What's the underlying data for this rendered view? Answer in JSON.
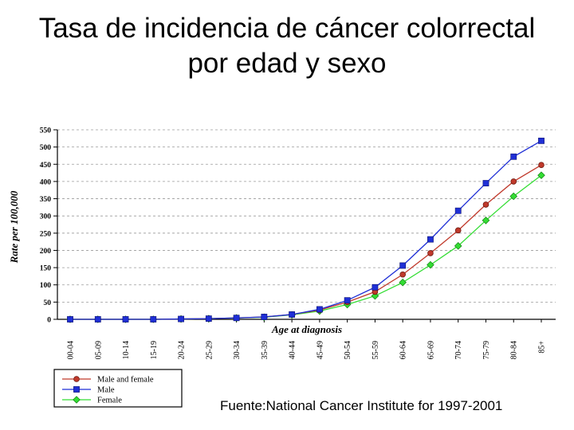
{
  "slide": {
    "title_line1": "Tasa de incidencia de cáncer colorrectal",
    "title_line2": "por edad y sexo",
    "source": "Fuente:National Cancer Institute for 1997-2001"
  },
  "chart_data": {
    "type": "line",
    "title": "",
    "xlabel": "Age at diagnosis",
    "ylabel": "Rate per 100,000",
    "ylim": [
      0,
      550
    ],
    "yticks": [
      0,
      50,
      100,
      150,
      200,
      250,
      300,
      350,
      400,
      450,
      500,
      550
    ],
    "grid": "horizontal dashed",
    "legend_position": "bottom-left",
    "categories": [
      "00-04",
      "05-09",
      "10-14",
      "15-19",
      "20-24",
      "25-29",
      "30-34",
      "35-39",
      "40-44",
      "45-49",
      "50-54",
      "55-59",
      "60-64",
      "65-69",
      "70-74",
      "75-79",
      "80-84",
      "85+"
    ],
    "series": [
      {
        "name": "Male and female",
        "color": "#c0392b",
        "marker": "circle",
        "values": [
          0,
          0,
          0,
          0,
          1,
          2,
          4,
          7,
          14,
          27,
          50,
          80,
          130,
          192,
          258,
          333,
          400,
          448
        ]
      },
      {
        "name": "Male",
        "color": "#1f2fd6",
        "marker": "square",
        "values": [
          0,
          0,
          0,
          0,
          1,
          2,
          4,
          7,
          14,
          29,
          55,
          93,
          156,
          232,
          315,
          395,
          472,
          518
        ]
      },
      {
        "name": "Female",
        "color": "#33dd33",
        "marker": "diamond",
        "values": [
          0,
          0,
          0,
          0,
          1,
          2,
          4,
          6,
          13,
          24,
          43,
          68,
          107,
          158,
          213,
          287,
          357,
          418
        ]
      }
    ]
  }
}
